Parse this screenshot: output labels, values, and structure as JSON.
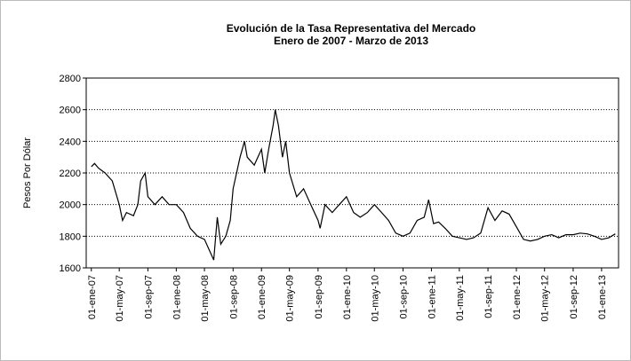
{
  "chart_data": {
    "type": "line",
    "title": "Evolución de la Tasa Representativa del Mercado",
    "subtitle": "Enero de 2007 - Marzo de 2013",
    "y_label": "Pesos Por Dólar",
    "color": "#000000",
    "grid": true,
    "ylim": [
      1600,
      2800
    ],
    "yticks": [
      1600,
      1800,
      2000,
      2200,
      2400,
      2600,
      2800
    ],
    "xlim": [
      "2006-12-10",
      "2013-03-15"
    ],
    "xticks": [
      {
        "value": "2007-01-01",
        "label": "01-ene-07"
      },
      {
        "value": "2007-05-01",
        "label": "01-may-07"
      },
      {
        "value": "2007-09-01",
        "label": "01-sep-07"
      },
      {
        "value": "2008-01-01",
        "label": "01-ene-08"
      },
      {
        "value": "2008-05-01",
        "label": "01-may-08"
      },
      {
        "value": "2008-09-01",
        "label": "01-sep-08"
      },
      {
        "value": "2009-01-01",
        "label": "01-ene-09"
      },
      {
        "value": "2009-05-01",
        "label": "01-may-09"
      },
      {
        "value": "2009-09-01",
        "label": "01-sep-09"
      },
      {
        "value": "2010-01-01",
        "label": "01-ene-10"
      },
      {
        "value": "2010-05-01",
        "label": "01-may-10"
      },
      {
        "value": "2010-09-01",
        "label": "01-sep-10"
      },
      {
        "value": "2011-01-01",
        "label": "01-ene-11"
      },
      {
        "value": "2011-05-01",
        "label": "01-may-11"
      },
      {
        "value": "2011-09-01",
        "label": "01-sep-11"
      },
      {
        "value": "2012-01-01",
        "label": "01-ene-12"
      },
      {
        "value": "2012-05-01",
        "label": "01-may-12"
      },
      {
        "value": "2012-09-01",
        "label": "01-sep-12"
      },
      {
        "value": "2013-01-01",
        "label": "01-ene-13"
      }
    ],
    "x": [
      "2007-01-01",
      "2007-01-15",
      "2007-02-01",
      "2007-03-01",
      "2007-04-01",
      "2007-05-01",
      "2007-05-15",
      "2007-06-01",
      "2007-07-01",
      "2007-07-20",
      "2007-08-01",
      "2007-08-20",
      "2007-09-01",
      "2007-10-01",
      "2007-11-01",
      "2007-12-01",
      "2008-01-01",
      "2008-02-01",
      "2008-03-01",
      "2008-04-01",
      "2008-05-01",
      "2008-06-10",
      "2008-06-25",
      "2008-07-10",
      "2008-08-01",
      "2008-08-20",
      "2008-09-01",
      "2008-10-01",
      "2008-10-20",
      "2008-11-01",
      "2008-12-01",
      "2009-01-01",
      "2009-01-15",
      "2009-02-01",
      "2009-02-20",
      "2009-03-01",
      "2009-03-15",
      "2009-04-01",
      "2009-04-15",
      "2009-05-01",
      "2009-06-01",
      "2009-07-01",
      "2009-08-01",
      "2009-09-01",
      "2009-09-10",
      "2009-10-01",
      "2009-11-01",
      "2009-12-01",
      "2010-01-01",
      "2010-02-01",
      "2010-03-01",
      "2010-04-01",
      "2010-05-01",
      "2010-06-01",
      "2010-07-01",
      "2010-08-01",
      "2010-09-01",
      "2010-10-01",
      "2010-11-01",
      "2010-12-01",
      "2010-12-20",
      "2011-01-10",
      "2011-02-01",
      "2011-03-01",
      "2011-04-01",
      "2011-05-01",
      "2011-06-01",
      "2011-07-01",
      "2011-08-01",
      "2011-09-01",
      "2011-10-01",
      "2011-11-01",
      "2011-12-01",
      "2012-01-01",
      "2012-02-01",
      "2012-03-01",
      "2012-04-01",
      "2012-05-01",
      "2012-06-01",
      "2012-07-01",
      "2012-08-01",
      "2012-09-01",
      "2012-10-01",
      "2012-11-01",
      "2012-12-01",
      "2013-01-01",
      "2013-02-01",
      "2013-03-01"
    ],
    "values": [
      2240,
      2260,
      2230,
      2200,
      2150,
      2000,
      1900,
      1950,
      1930,
      2000,
      2150,
      2200,
      2050,
      2000,
      2050,
      2000,
      2000,
      1950,
      1850,
      1800,
      1780,
      1650,
      1920,
      1750,
      1800,
      1900,
      2100,
      2300,
      2400,
      2300,
      2250,
      2350,
      2200,
      2350,
      2500,
      2600,
      2500,
      2300,
      2400,
      2200,
      2050,
      2100,
      2000,
      1900,
      1850,
      2000,
      1950,
      2000,
      2050,
      1950,
      1920,
      1950,
      2000,
      1950,
      1900,
      1820,
      1800,
      1820,
      1900,
      1920,
      2030,
      1880,
      1890,
      1850,
      1800,
      1790,
      1780,
      1790,
      1820,
      1980,
      1900,
      1960,
      1940,
      1860,
      1780,
      1770,
      1780,
      1800,
      1810,
      1790,
      1810,
      1810,
      1820,
      1815,
      1800,
      1780,
      1790,
      1815
    ]
  }
}
